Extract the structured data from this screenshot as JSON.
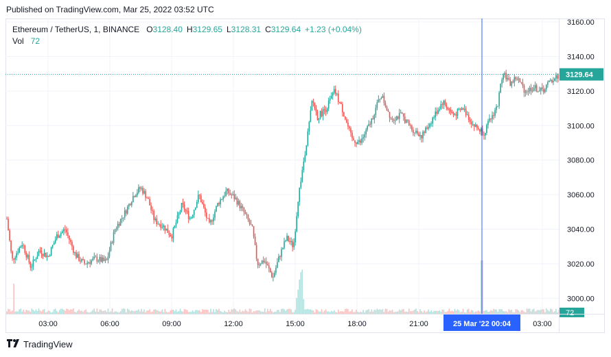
{
  "header": {
    "published_text": "Published on TradingView.com, Mar 25, 2022 03:52 UTC"
  },
  "legend": {
    "symbol": "Ethereum / TetherUS, 1, BINANCE",
    "o_label": "O",
    "o_value": "3128.40",
    "h_label": "H",
    "h_value": "3129.65",
    "l_label": "L",
    "l_value": "3128.31",
    "c_label": "C",
    "c_value": "3129.64",
    "change": "+1.23 (+0.04%)",
    "vol_label": "Vol",
    "vol_value": "72"
  },
  "price_axis": {
    "ticks": [
      "3160.00",
      "3140.00",
      "3120.00",
      "3100.00",
      "3080.00",
      "3060.00",
      "3040.00",
      "3020.00",
      "3000.00"
    ],
    "last_price": "3129.64",
    "vol_badge": "72"
  },
  "time_axis": {
    "ticks": [
      "03:00",
      "06:00",
      "09:00",
      "12:00",
      "15:00",
      "18:00",
      "21:00",
      "03:00"
    ],
    "crosshair_label": "25 Mar '22   00:04"
  },
  "colors": {
    "up": "#26a69a",
    "down": "#ef5350",
    "crosshair": "#2962ff",
    "grid": "#f0f3fa",
    "last_price": "#26a69a"
  },
  "chart_data": {
    "type": "candlestick",
    "title": "Ethereum / TetherUS, 1, BINANCE",
    "x_start": "Mar 24, 2022 01:00 UTC",
    "x_end": "Mar 25, 2022 03:52 UTC",
    "ylim": [
      2991,
      3162
    ],
    "grid": true,
    "price_path": [
      {
        "t": "01:00",
        "p": 3046
      },
      {
        "t": "01:15",
        "p": 3022
      },
      {
        "t": "01:45",
        "p": 3032
      },
      {
        "t": "02:10",
        "p": 3018
      },
      {
        "t": "02:35",
        "p": 3028
      },
      {
        "t": "03:00",
        "p": 3024
      },
      {
        "t": "03:25",
        "p": 3036
      },
      {
        "t": "03:50",
        "p": 3040
      },
      {
        "t": "04:20",
        "p": 3025
      },
      {
        "t": "04:45",
        "p": 3020
      },
      {
        "t": "05:20",
        "p": 3023
      },
      {
        "t": "05:50",
        "p": 3021
      },
      {
        "t": "06:15",
        "p": 3040
      },
      {
        "t": "06:45",
        "p": 3050
      },
      {
        "t": "07:10",
        "p": 3060
      },
      {
        "t": "07:30",
        "p": 3064
      },
      {
        "t": "07:50",
        "p": 3058
      },
      {
        "t": "08:10",
        "p": 3045
      },
      {
        "t": "08:35",
        "p": 3042
      },
      {
        "t": "09:00",
        "p": 3036
      },
      {
        "t": "09:30",
        "p": 3054
      },
      {
        "t": "09:55",
        "p": 3046
      },
      {
        "t": "10:20",
        "p": 3060
      },
      {
        "t": "10:50",
        "p": 3042
      },
      {
        "t": "11:15",
        "p": 3055
      },
      {
        "t": "11:40",
        "p": 3062
      },
      {
        "t": "12:05",
        "p": 3058
      },
      {
        "t": "12:30",
        "p": 3050
      },
      {
        "t": "12:55",
        "p": 3040
      },
      {
        "t": "13:10",
        "p": 3020
      },
      {
        "t": "13:30",
        "p": 3022
      },
      {
        "t": "13:55",
        "p": 3012
      },
      {
        "t": "14:15",
        "p": 3025
      },
      {
        "t": "14:35",
        "p": 3035
      },
      {
        "t": "14:55",
        "p": 3030
      },
      {
        "t": "15:10",
        "p": 3060
      },
      {
        "t": "15:25",
        "p": 3080
      },
      {
        "t": "15:40",
        "p": 3100
      },
      {
        "t": "15:50",
        "p": 3115
      },
      {
        "t": "16:05",
        "p": 3105
      },
      {
        "t": "16:30",
        "p": 3110
      },
      {
        "t": "16:55",
        "p": 3120
      },
      {
        "t": "17:20",
        "p": 3108
      },
      {
        "t": "17:45",
        "p": 3092
      },
      {
        "t": "18:10",
        "p": 3090
      },
      {
        "t": "18:40",
        "p": 3102
      },
      {
        "t": "19:10",
        "p": 3118
      },
      {
        "t": "19:40",
        "p": 3104
      },
      {
        "t": "20:10",
        "p": 3106
      },
      {
        "t": "20:40",
        "p": 3098
      },
      {
        "t": "21:10",
        "p": 3094
      },
      {
        "t": "21:40",
        "p": 3104
      },
      {
        "t": "22:10",
        "p": 3114
      },
      {
        "t": "22:40",
        "p": 3106
      },
      {
        "t": "23:10",
        "p": 3110
      },
      {
        "t": "23:40",
        "p": 3100
      },
      {
        "t": "00:10",
        "p": 3096
      },
      {
        "t": "00:30",
        "p": 3104
      },
      {
        "t": "00:50",
        "p": 3112
      },
      {
        "t": "01:05",
        "p": 3132
      },
      {
        "t": "01:25",
        "p": 3124
      },
      {
        "t": "01:45",
        "p": 3128
      },
      {
        "t": "02:10",
        "p": 3120
      },
      {
        "t": "02:35",
        "p": 3122
      },
      {
        "t": "03:00",
        "p": 3120
      },
      {
        "t": "03:25",
        "p": 3126
      },
      {
        "t": "03:52",
        "p": 3129.64
      }
    ],
    "volume_spikes": [
      {
        "t": "01:00",
        "v": "high"
      },
      {
        "t": "15:05",
        "v": "very high"
      },
      {
        "t": "01:02",
        "v": "very high"
      }
    ],
    "last_close": 3129.64,
    "last_volume": 72
  }
}
